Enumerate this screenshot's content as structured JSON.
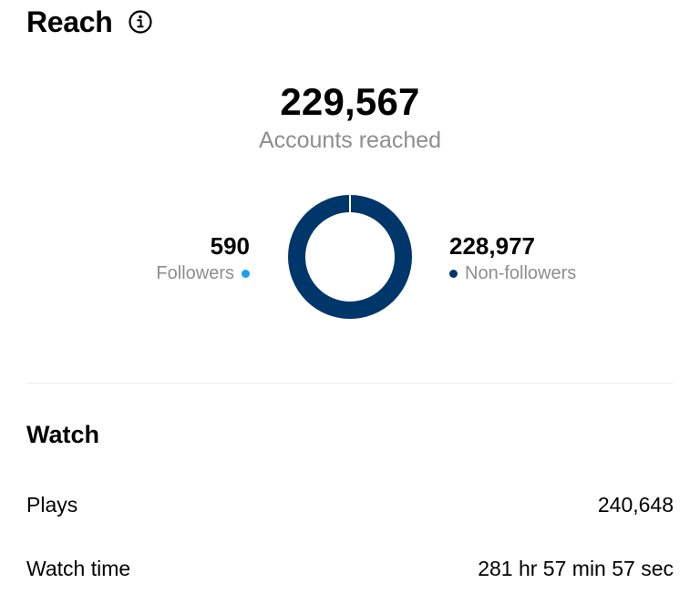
{
  "header": {
    "title": "Reach",
    "info_icon": "info-icon"
  },
  "reach": {
    "total_value": "229,567",
    "total_label": "Accounts reached",
    "followers": {
      "value": "590",
      "label": "Followers",
      "count": 590,
      "color": "#1aa1f0"
    },
    "non_followers": {
      "value": "228,977",
      "label": "Non-followers",
      "count": 228977,
      "color": "#00376b"
    }
  },
  "watch": {
    "title": "Watch",
    "plays_label": "Plays",
    "plays_value": "240,648",
    "watch_time_label": "Watch time",
    "watch_time_value": "281 hr 57 min 57 sec"
  }
}
